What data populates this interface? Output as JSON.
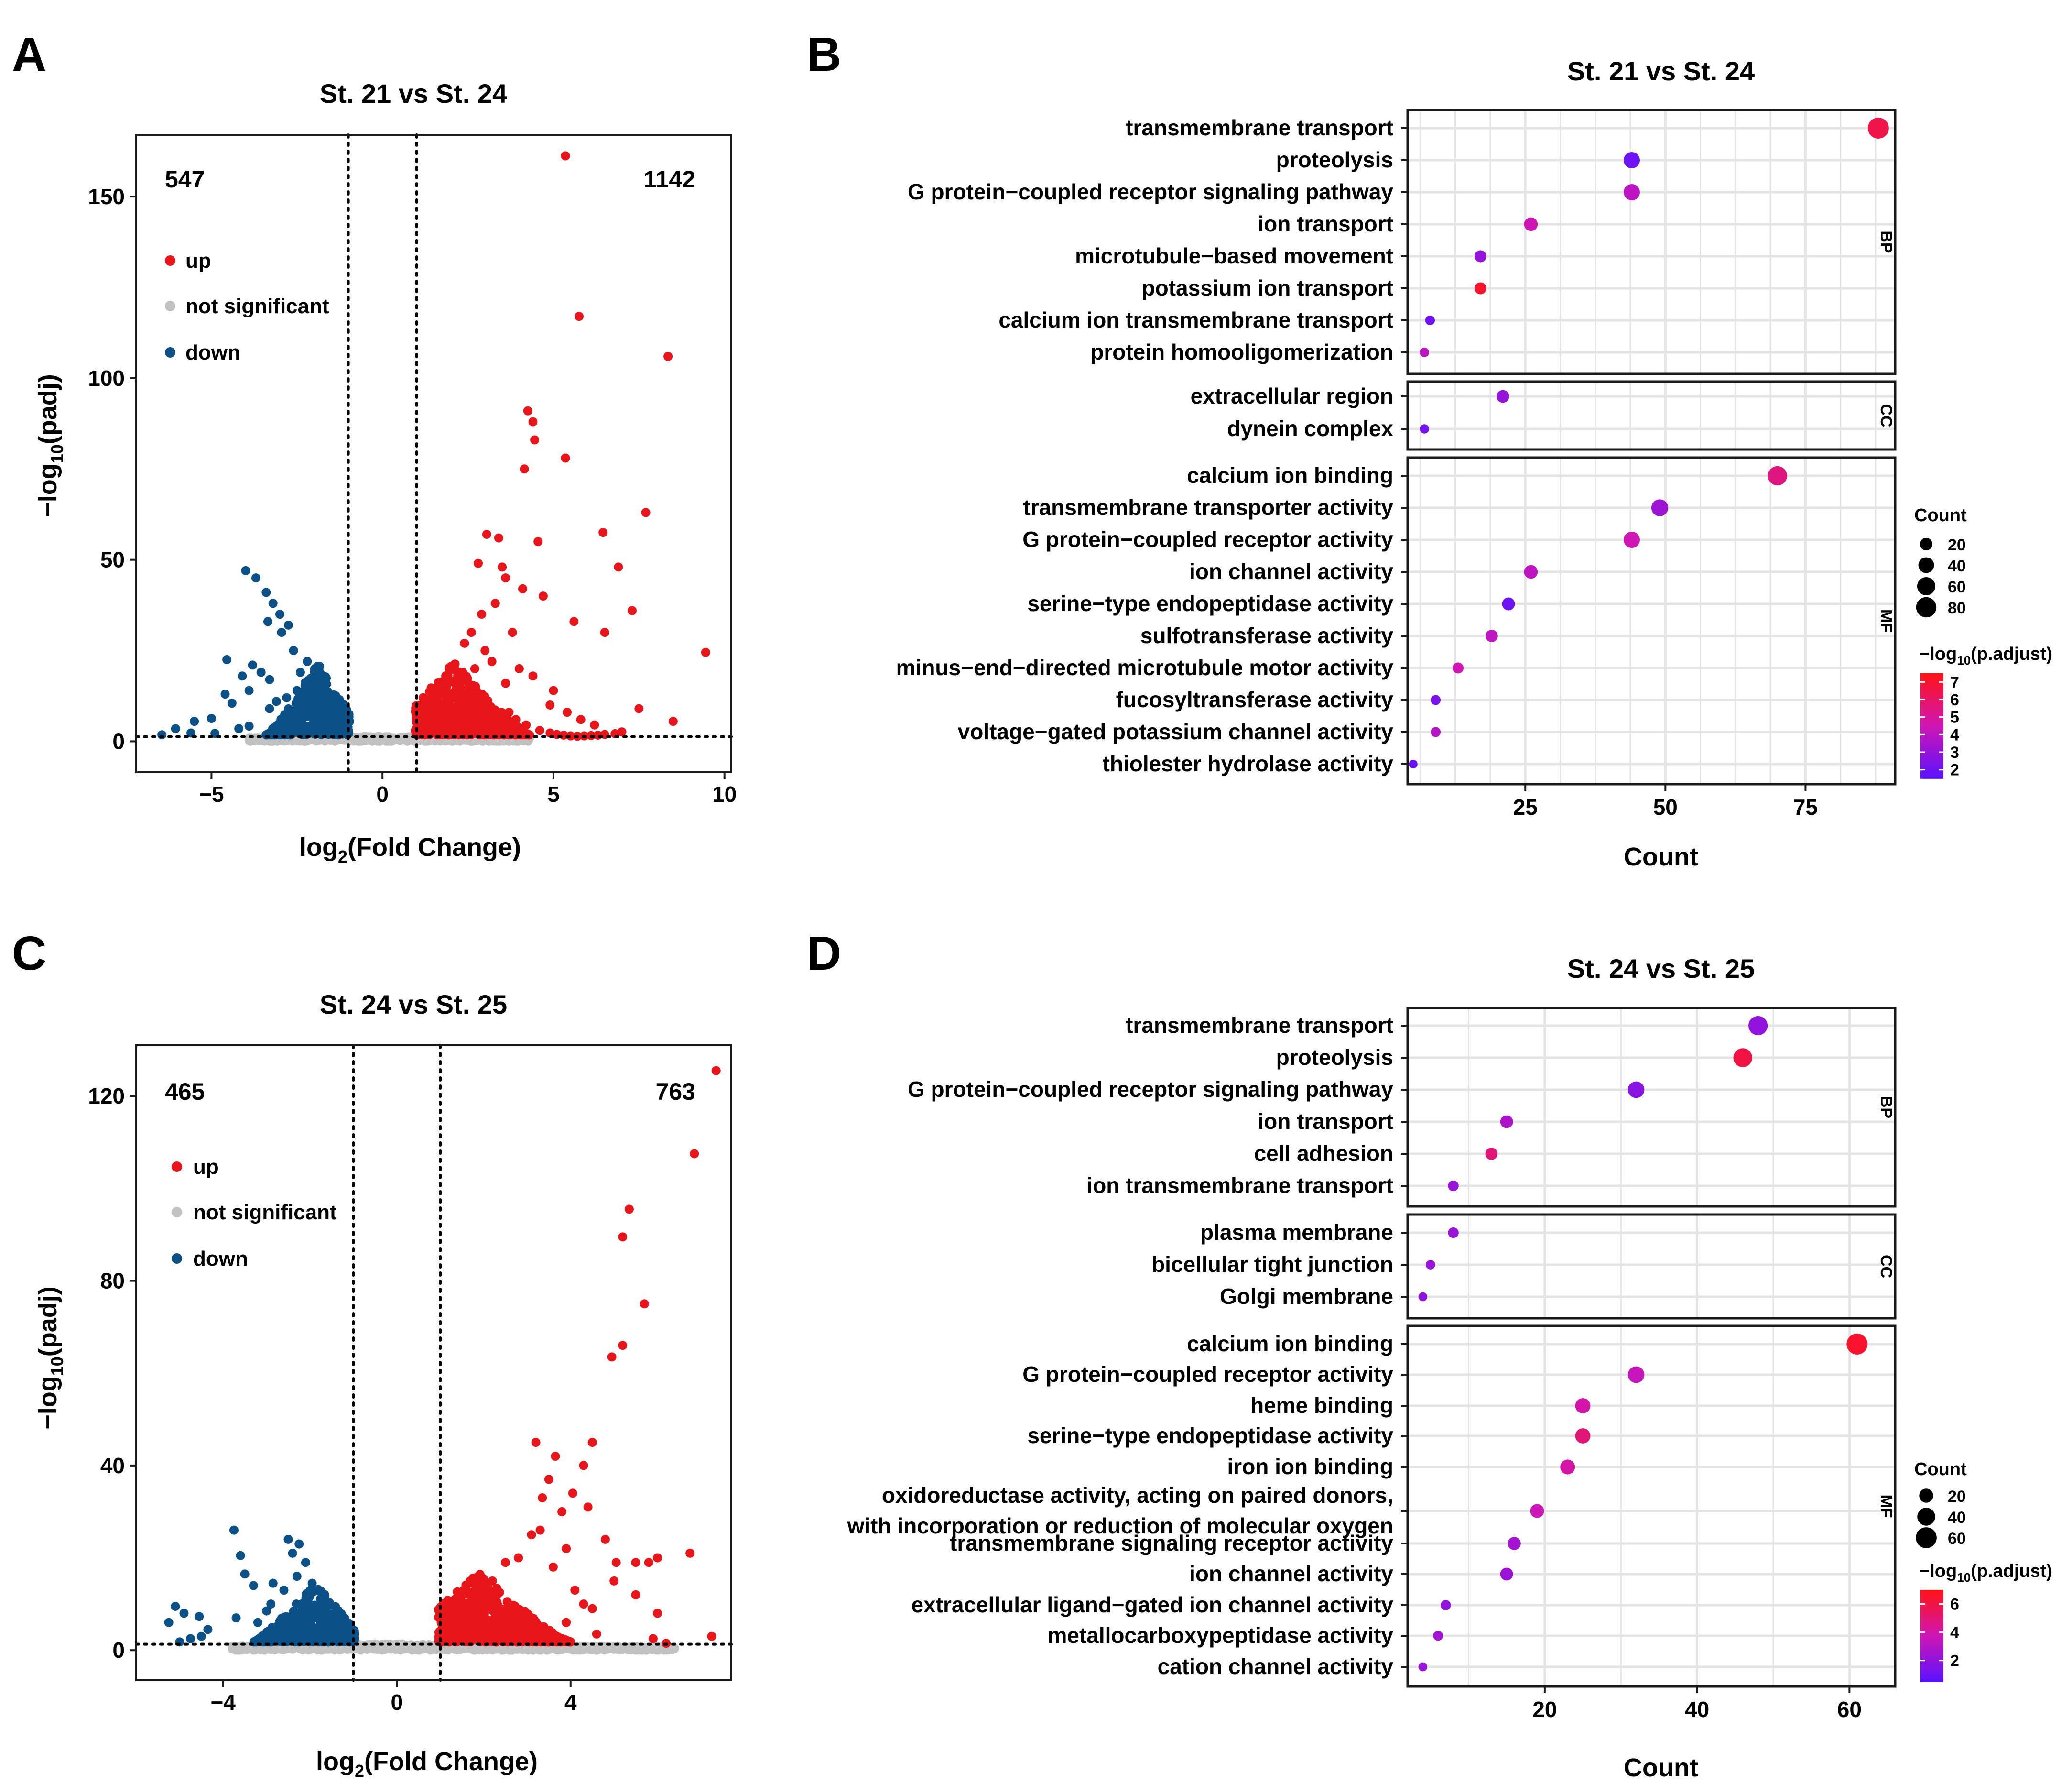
{
  "figure": {
    "panel_labels": [
      "A",
      "B",
      "C",
      "D"
    ],
    "colors": {
      "up": "#e8161b",
      "down": "#0b5188",
      "not_significant": "#c2c2c2",
      "grid": "#e4e4e4",
      "frame": "#1a1a1a",
      "threshold": "#000000",
      "padj_high": "#ff1414",
      "padj_mid": "#cf15b4",
      "padj_low": "#5b12ff"
    }
  },
  "chart_data": [
    {
      "panel": "A",
      "type": "scatter",
      "kind": "volcano",
      "title": "St. 21 vs St. 24",
      "xlabel": "log2(Fold Change)",
      "xlabel_parts": {
        "main": "log",
        "sub": "2",
        "rest": "(Fold Change)"
      },
      "ylabel": "-log10(padj)",
      "ylabel_parts": {
        "main": "−log",
        "sub": "10",
        "rest": "(padj)"
      },
      "xlim": [
        -7.2,
        10.2
      ],
      "ylim": [
        -8.5,
        167
      ],
      "xticks": [
        -5,
        0,
        5,
        10
      ],
      "yticks": [
        0,
        50,
        100,
        150
      ],
      "tick_labels_x": [
        "−5",
        "0",
        "5",
        "10"
      ],
      "tick_labels_y": [
        "0",
        "50",
        "100",
        "150"
      ],
      "fc_thresholds": [
        -1,
        1
      ],
      "padj_threshold": 1.3,
      "counts": {
        "down": "547",
        "up": "1142"
      },
      "legend": [
        {
          "label": "up",
          "color": "#e8161b"
        },
        {
          "label": "not significant",
          "color": "#c2c2c2"
        },
        {
          "label": "down",
          "color": "#0b5188"
        }
      ],
      "up_points": [
        [
          5.35,
          161.2
        ],
        [
          5.75,
          117
        ],
        [
          8.35,
          106
        ],
        [
          4.25,
          91
        ],
        [
          4.4,
          88
        ],
        [
          4.45,
          83
        ],
        [
          4.15,
          75
        ],
        [
          5.35,
          78
        ],
        [
          7.7,
          63
        ],
        [
          6.45,
          57.5
        ],
        [
          4.55,
          55
        ],
        [
          9.45,
          24.5
        ],
        [
          7.3,
          36
        ],
        [
          6.9,
          48
        ],
        [
          3.05,
          57
        ],
        [
          3.4,
          56
        ],
        [
          2.8,
          49
        ],
        [
          3.6,
          45
        ],
        [
          4.7,
          40
        ],
        [
          5.6,
          33
        ],
        [
          6.5,
          30
        ],
        [
          7.5,
          9
        ],
        [
          8.5,
          5.5
        ],
        [
          7.0,
          2.6
        ],
        [
          6.8,
          2.1
        ],
        [
          6.5,
          1.9
        ],
        [
          6.3,
          1.7
        ],
        [
          6.1,
          1.6
        ],
        [
          5.9,
          1.5
        ],
        [
          5.7,
          1.4
        ],
        [
          5.5,
          1.5
        ],
        [
          5.3,
          1.7
        ],
        [
          5.1,
          1.9
        ],
        [
          4.9,
          2.3
        ],
        [
          4.6,
          3.0
        ],
        [
          4.2,
          4.5
        ],
        [
          3.9,
          6
        ],
        [
          3.7,
          8
        ],
        [
          3.2,
          22
        ],
        [
          3.0,
          25
        ],
        [
          2.6,
          30
        ],
        [
          4.0,
          20
        ],
        [
          3.3,
          38
        ],
        [
          2.9,
          35
        ],
        [
          3.8,
          30
        ],
        [
          5.0,
          14
        ],
        [
          4.4,
          18
        ],
        [
          2.4,
          27
        ],
        [
          3.6,
          16
        ],
        [
          4.9,
          10
        ],
        [
          5.4,
          8
        ],
        [
          5.8,
          6
        ],
        [
          6.2,
          4.5
        ],
        [
          3.5,
          48
        ],
        [
          4.1,
          42
        ],
        [
          2.7,
          20
        ],
        [
          2.2,
          18
        ],
        [
          1.9,
          16
        ],
        [
          1.6,
          12
        ],
        [
          1.4,
          8
        ]
      ],
      "down_points": [
        [
          -4.0,
          47
        ],
        [
          -3.7,
          45
        ],
        [
          -3.4,
          41
        ],
        [
          -3.2,
          38
        ],
        [
          -3.0,
          35
        ],
        [
          -2.75,
          32
        ],
        [
          -3.35,
          33
        ],
        [
          -2.95,
          30
        ],
        [
          -2.6,
          25
        ],
        [
          -3.8,
          21
        ],
        [
          -3.55,
          19
        ],
        [
          -3.3,
          17
        ],
        [
          -4.55,
          22.5
        ],
        [
          -4.1,
          18
        ],
        [
          -3.9,
          14
        ],
        [
          -4.6,
          13
        ],
        [
          -4.4,
          10.5
        ],
        [
          -5.0,
          6.3
        ],
        [
          -5.5,
          5.5
        ],
        [
          -6.05,
          3.5
        ],
        [
          -6.45,
          1.8
        ],
        [
          -5.6,
          2.3
        ],
        [
          -4.9,
          2.2
        ],
        [
          -4.2,
          3.5
        ],
        [
          -3.9,
          4.2
        ],
        [
          -2.4,
          19
        ],
        [
          -2.2,
          22
        ],
        [
          -1.9,
          17
        ],
        [
          -2.8,
          12
        ],
        [
          -2.5,
          14
        ],
        [
          -3.1,
          11
        ],
        [
          -3.3,
          9
        ]
      ],
      "up_cloud": {
        "x_min": 0.95,
        "x_max": 4.3,
        "y_base": 1.8,
        "y_peak": 22,
        "peak_x": 2.1
      },
      "down_cloud": {
        "x_min": -3.4,
        "x_max": -0.95,
        "y_base": 1.8,
        "y_peak": 22,
        "peak_x": -1.9
      },
      "ns_band": {
        "x_min": -3.9,
        "x_max": 4.3,
        "y_max": 1.4
      }
    },
    {
      "panel": "B",
      "type": "scatter",
      "kind": "go_dotplot",
      "title": "St. 21 vs St. 24",
      "xlabel": "Count",
      "xlim": [
        4,
        91
      ],
      "xticks": [
        25,
        50,
        75
      ],
      "tick_labels_x": [
        "25",
        "50",
        "75"
      ],
      "size_legend": {
        "title": "Count",
        "values": [
          20,
          40,
          60,
          80
        ],
        "labels": [
          "20",
          "40",
          "60",
          "80"
        ],
        "max_count": 88
      },
      "color_legend": {
        "title": "-log10(p.adjust)",
        "title_parts": {
          "main": "−log",
          "sub": "10",
          "rest": "(p.adjust)"
        },
        "min": 1.5,
        "max": 7.5,
        "ticks": [
          2,
          3,
          4,
          5,
          6,
          7
        ],
        "labels": [
          "2",
          "3",
          "4",
          "5",
          "6",
          "7"
        ]
      },
      "facets": [
        {
          "name": "BP",
          "terms": [
            {
              "term": "transmembrane transport",
              "count": 88,
              "padj_log": 6.5
            },
            {
              "term": "proteolysis",
              "count": 44,
              "padj_log": 2.0
            },
            {
              "term": "G protein−coupled receptor signaling pathway",
              "count": 44,
              "padj_log": 4.0
            },
            {
              "term": "ion transport",
              "count": 26,
              "padj_log": 4.5
            },
            {
              "term": "microtubule−based movement",
              "count": 17,
              "padj_log": 3.0
            },
            {
              "term": "potassium ion transport",
              "count": 17,
              "padj_log": 7.0
            },
            {
              "term": "calcium ion transmembrane transport",
              "count": 8,
              "padj_log": 2.0
            },
            {
              "term": "protein homooligomerization",
              "count": 7,
              "padj_log": 4.0
            }
          ]
        },
        {
          "name": "CC",
          "terms": [
            {
              "term": "extracellular region",
              "count": 21,
              "padj_log": 3.0
            },
            {
              "term": "dynein complex",
              "count": 7,
              "padj_log": 2.2
            }
          ]
        },
        {
          "name": "MF",
          "terms": [
            {
              "term": "calcium ion binding",
              "count": 70,
              "padj_log": 5.5
            },
            {
              "term": "transmembrane transporter activity",
              "count": 49,
              "padj_log": 3.2
            },
            {
              "term": "G protein−coupled receptor activity",
              "count": 44,
              "padj_log": 4.5
            },
            {
              "term": "ion channel activity",
              "count": 26,
              "padj_log": 4.0
            },
            {
              "term": "serine−type endopeptidase activity",
              "count": 22,
              "padj_log": 2.0
            },
            {
              "term": "sulfotransferase activity",
              "count": 19,
              "padj_log": 4.0
            },
            {
              "term": "minus−end−directed microtubule motor activity",
              "count": 13,
              "padj_log": 4.5
            },
            {
              "term": "fucosyltransferase activity",
              "count": 9,
              "padj_log": 2.3
            },
            {
              "term": "voltage−gated potassium channel activity",
              "count": 9,
              "padj_log": 3.8
            },
            {
              "term": "thiolester hydrolase activity",
              "count": 5,
              "padj_log": 1.9
            }
          ]
        }
      ]
    },
    {
      "panel": "C",
      "type": "scatter",
      "kind": "volcano",
      "title": "St. 24 vs St. 25",
      "xlabel": "log2(Fold Change)",
      "xlabel_parts": {
        "main": "log",
        "sub": "2",
        "rest": "(Fold Change)"
      },
      "ylabel": "-log10(padj)",
      "ylabel_parts": {
        "main": "−log",
        "sub": "10",
        "rest": "(padj)"
      },
      "xlim": [
        -6.0,
        7.7
      ],
      "ylim": [
        -6.5,
        131
      ],
      "xticks": [
        -4,
        0,
        4
      ],
      "yticks": [
        0,
        40,
        80,
        120
      ],
      "tick_labels_x": [
        "−4",
        "0",
        "4"
      ],
      "tick_labels_y": [
        "0",
        "40",
        "80",
        "120"
      ],
      "fc_thresholds": [
        -1,
        1
      ],
      "padj_threshold": 1.3,
      "counts": {
        "down": "465",
        "up": "763"
      },
      "legend": [
        {
          "label": "up",
          "color": "#e8161b"
        },
        {
          "label": "not significant",
          "color": "#c2c2c2"
        },
        {
          "label": "down",
          "color": "#0b5188"
        }
      ],
      "up_points": [
        [
          7.35,
          125.5
        ],
        [
          6.85,
          107.5
        ],
        [
          5.35,
          95.5
        ],
        [
          5.2,
          89.5
        ],
        [
          5.7,
          75
        ],
        [
          5.2,
          66
        ],
        [
          4.95,
          63.5
        ],
        [
          3.2,
          45
        ],
        [
          4.5,
          45
        ],
        [
          3.65,
          42
        ],
        [
          4.3,
          40
        ],
        [
          3.5,
          37
        ],
        [
          3.35,
          33
        ],
        [
          3.8,
          30
        ],
        [
          4.05,
          34
        ],
        [
          4.4,
          31
        ],
        [
          4.8,
          24
        ],
        [
          5.05,
          19
        ],
        [
          5.5,
          12
        ],
        [
          6.0,
          8
        ],
        [
          5.0,
          15
        ],
        [
          5.8,
          19
        ],
        [
          6.75,
          21
        ],
        [
          7.25,
          3
        ],
        [
          6.2,
          1.5
        ],
        [
          5.9,
          2.5
        ],
        [
          4.6,
          3.5
        ],
        [
          4.3,
          10
        ],
        [
          3.1,
          25
        ],
        [
          3.3,
          26
        ],
        [
          2.8,
          20
        ],
        [
          3.6,
          18
        ],
        [
          3.9,
          22
        ],
        [
          2.5,
          19
        ],
        [
          2.2,
          15
        ],
        [
          1.8,
          12
        ],
        [
          1.5,
          9
        ],
        [
          1.2,
          5
        ],
        [
          4.1,
          13
        ],
        [
          4.5,
          9
        ],
        [
          3.9,
          6
        ],
        [
          5.5,
          19
        ],
        [
          6.0,
          20
        ]
      ],
      "down_points": [
        [
          -3.75,
          26
        ],
        [
          -2.5,
          24
        ],
        [
          -2.25,
          23
        ],
        [
          -2.4,
          21
        ],
        [
          -2.1,
          19
        ],
        [
          -3.6,
          20.5
        ],
        [
          -3.5,
          16.5
        ],
        [
          -3.3,
          14
        ],
        [
          -2.85,
          14.5
        ],
        [
          -2.6,
          13
        ],
        [
          -2.3,
          16
        ],
        [
          -1.95,
          14.5
        ],
        [
          -5.1,
          9.5
        ],
        [
          -4.9,
          8
        ],
        [
          -4.55,
          7.3
        ],
        [
          -5.25,
          6
        ],
        [
          -4.35,
          4.5
        ],
        [
          -4.5,
          3
        ],
        [
          -4.75,
          2.5
        ],
        [
          -5.0,
          1.8
        ],
        [
          -3.7,
          7
        ],
        [
          -3.2,
          6
        ],
        [
          -3.0,
          8.5
        ],
        [
          -2.9,
          10
        ]
      ],
      "up_cloud": {
        "x_min": 0.95,
        "x_max": 4.0,
        "y_base": 1.8,
        "y_peak": 17,
        "peak_x": 1.9
      },
      "down_cloud": {
        "x_min": -3.3,
        "x_max": -0.95,
        "y_base": 1.8,
        "y_peak": 15,
        "peak_x": -1.9
      },
      "ns_band": {
        "x_min": -3.8,
        "x_max": 6.4,
        "y_max": 1.4
      }
    },
    {
      "panel": "D",
      "type": "scatter",
      "kind": "go_dotplot",
      "title": "St. 24 vs St. 25",
      "xlabel": "Count",
      "xlim": [
        2,
        66
      ],
      "xticks": [
        20,
        40,
        60
      ],
      "tick_labels_x": [
        "20",
        "40",
        "60"
      ],
      "size_legend": {
        "title": "Count",
        "values": [
          20,
          40,
          60
        ],
        "labels": [
          "20",
          "40",
          "60"
        ],
        "max_count": 61
      },
      "color_legend": {
        "title": "-log10(p.adjust)",
        "title_parts": {
          "main": "−log",
          "sub": "10",
          "rest": "(p.adjust)"
        },
        "min": 0.5,
        "max": 7.0,
        "ticks": [
          2,
          4,
          6
        ],
        "labels": [
          "2",
          "4",
          "6"
        ]
      },
      "facets": [
        {
          "name": "BP",
          "terms": [
            {
              "term": "transmembrane transport",
              "count": 48,
              "padj_log": 2.0
            },
            {
              "term": "proteolysis",
              "count": 46,
              "padj_log": 6.0
            },
            {
              "term": "G protein−coupled receptor signaling pathway",
              "count": 32,
              "padj_log": 1.8
            },
            {
              "term": "ion transport",
              "count": 15,
              "padj_log": 2.8
            },
            {
              "term": "cell adhesion",
              "count": 13,
              "padj_log": 5.0
            },
            {
              "term": "ion transmembrane transport",
              "count": 8,
              "padj_log": 2.2
            }
          ]
        },
        {
          "name": "CC",
          "terms": [
            {
              "term": "plasma membrane",
              "count": 8,
              "padj_log": 2.2
            },
            {
              "term": "bicellular tight junction",
              "count": 5,
              "padj_log": 2.2
            },
            {
              "term": "Golgi membrane",
              "count": 4,
              "padj_log": 2.0
            }
          ]
        },
        {
          "name": "MF",
          "terms": [
            {
              "term": "calcium ion binding",
              "count": 61,
              "padj_log": 6.5
            },
            {
              "term": "G protein−coupled receptor activity",
              "count": 32,
              "padj_log": 3.5
            },
            {
              "term": "heme binding",
              "count": 25,
              "padj_log": 4.0
            },
            {
              "term": "serine−type endopeptidase activity",
              "count": 25,
              "padj_log": 5.0
            },
            {
              "term": "iron ion binding",
              "count": 23,
              "padj_log": 4.0
            },
            {
              "term": "oxidoreductase activity, acting on paired donors, with incorporation or reduction of molecular oxygen",
              "count": 19,
              "padj_log": 3.6,
              "label_lines": [
                "oxidoreductase activity, acting on paired donors,",
                "with incorporation or reduction of molecular oxygen"
              ]
            },
            {
              "term": "transmembrane signaling receptor activity",
              "count": 16,
              "padj_log": 2.5
            },
            {
              "term": "ion channel activity",
              "count": 15,
              "padj_log": 2.3
            },
            {
              "term": "extracellular ligand−gated ion channel activity",
              "count": 7,
              "padj_log": 2.0
            },
            {
              "term": "metallocarboxypeptidase activity",
              "count": 6,
              "padj_log": 2.5
            },
            {
              "term": "cation channel activity",
              "count": 4,
              "padj_log": 2.2
            }
          ]
        }
      ]
    }
  ]
}
